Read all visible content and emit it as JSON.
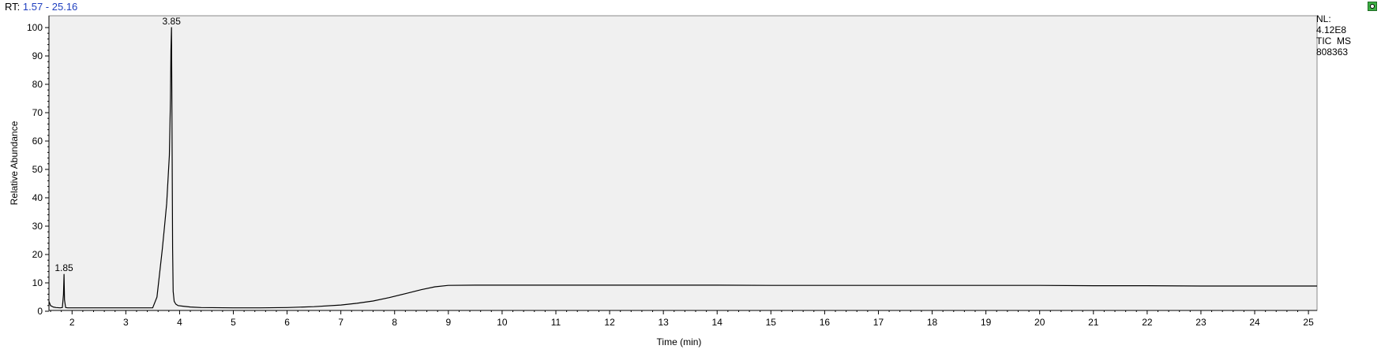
{
  "header": {
    "rt_label": "RT:",
    "rt_range": "1.57 - 25.16"
  },
  "info_box": {
    "nl_label": "NL:",
    "nl_value": "4.12E8",
    "scan_type": "TIC  MS",
    "file_id": "808363"
  },
  "corner_button": {
    "icon": "settings-icon",
    "color": "#3cb043"
  },
  "colors": {
    "plot_background": "#f0f0f0",
    "trace": "#000000",
    "rt_value": "#1f3fbf"
  },
  "chart_data": {
    "type": "line",
    "title": "",
    "xlabel": "Time (min)",
    "ylabel": "Relative Abundance",
    "xlim": [
      1.57,
      25.16
    ],
    "ylim": [
      0,
      100
    ],
    "x_ticks": [
      2,
      3,
      4,
      5,
      6,
      7,
      8,
      9,
      10,
      11,
      12,
      13,
      14,
      15,
      16,
      17,
      18,
      19,
      20,
      21,
      22,
      23,
      24,
      25
    ],
    "y_ticks": [
      0,
      10,
      20,
      30,
      40,
      50,
      60,
      70,
      80,
      90,
      100
    ],
    "grid": false,
    "legend": "none",
    "peak_labels": [
      {
        "x": 1.85,
        "y": 13,
        "text": "1.85"
      },
      {
        "x": 3.85,
        "y": 100,
        "text": "3.85"
      }
    ],
    "series": [
      {
        "x": [
          1.57,
          1.6,
          1.65,
          1.7,
          1.78,
          1.82,
          1.84,
          1.85,
          1.86,
          1.88,
          1.92,
          2.0,
          2.5,
          3.0,
          3.5,
          3.58,
          3.62,
          3.68,
          3.72,
          3.76,
          3.79,
          3.81,
          3.83,
          3.84,
          3.85,
          3.86,
          3.87,
          3.88,
          3.9,
          3.93,
          3.97,
          4.05,
          4.2,
          4.4,
          5.0,
          5.5,
          6.0,
          6.5,
          7.0,
          7.3,
          7.6,
          7.9,
          8.2,
          8.5,
          8.75,
          9.0,
          9.5,
          10,
          11,
          12,
          13,
          14,
          15,
          16,
          17,
          18,
          19,
          20,
          21,
          22,
          23,
          24,
          25,
          25.16
        ],
        "y": [
          3.5,
          2.0,
          1.5,
          1.3,
          1.2,
          1.3,
          6,
          13,
          4,
          1.3,
          1.2,
          1.2,
          1.2,
          1.2,
          1.2,
          5,
          12,
          22,
          30,
          38,
          48,
          55,
          75,
          92,
          100,
          62,
          22,
          7,
          3.5,
          2.5,
          2.0,
          1.8,
          1.5,
          1.3,
          1.2,
          1.2,
          1.3,
          1.6,
          2.2,
          2.8,
          3.6,
          4.8,
          6.2,
          7.6,
          8.6,
          9.1,
          9.2,
          9.2,
          9.2,
          9.2,
          9.2,
          9.2,
          9.1,
          9.1,
          9.1,
          9.1,
          9.1,
          9.1,
          9.0,
          9.0,
          8.9,
          8.9,
          8.9,
          8.9
        ]
      }
    ]
  }
}
